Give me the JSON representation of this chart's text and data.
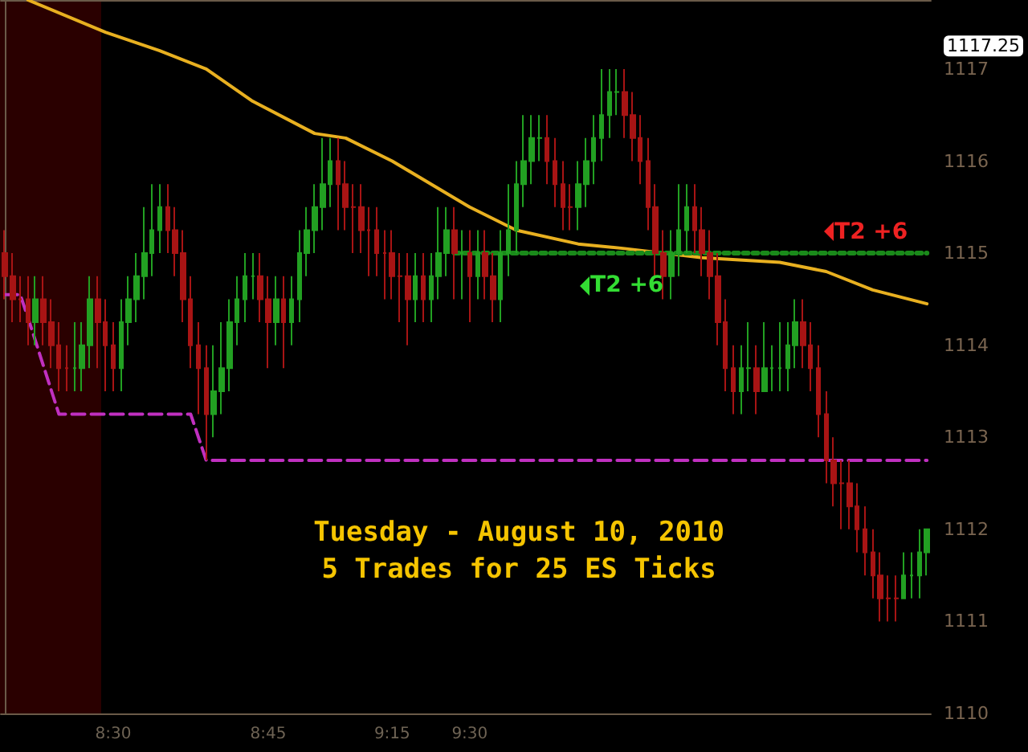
{
  "chart_data": {
    "type": "candlestick",
    "title": "Tuesday - August 10, 2010",
    "subtitle": "5 Trades for 25 ES Ticks",
    "categories": [
      null,
      null,
      null,
      null,
      null,
      null,
      null,
      null,
      null,
      null,
      null,
      null,
      null,
      null,
      "8:30",
      null,
      null,
      null,
      null,
      null,
      null,
      null,
      null,
      null,
      null,
      null,
      null,
      null,
      null,
      null,
      null,
      null,
      null,
      null,
      "8:45",
      null,
      null,
      null,
      null,
      null,
      null,
      null,
      null,
      null,
      null,
      null,
      null,
      null,
      null,
      null,
      "9:15",
      null,
      null,
      null,
      null,
      null,
      null,
      null,
      null,
      null,
      "9:30",
      null,
      null,
      null,
      null,
      null,
      null,
      null,
      null,
      null,
      null,
      null,
      null,
      null,
      null,
      null,
      null,
      null,
      null,
      null,
      null,
      null,
      null,
      null,
      null,
      null,
      null,
      null,
      null,
      null,
      null,
      null,
      null,
      null,
      null,
      null,
      null,
      null,
      null,
      null,
      null,
      null,
      null,
      null,
      null,
      null,
      null,
      null,
      null,
      null,
      null,
      null,
      null,
      null,
      null,
      null,
      null,
      null,
      null,
      null
    ],
    "ylim": [
      1110,
      1117.75
    ],
    "yticks": [
      1110,
      1111,
      1112,
      1113,
      1114,
      1115,
      1116,
      1117,
      {
        "value": 1117.25,
        "label": "1117.25"
      }
    ],
    "grid": false,
    "annotations": [
      "T2 +6",
      "T2 +6"
    ],
    "series": [
      {
        "type": "candlestick",
        "colors": [
          "#a81414",
          "#a81414",
          "#a81414",
          "#a81414",
          "#22a022",
          "#a81414",
          "#a81414",
          "#a81414",
          "#a81414",
          "#22a022",
          "#22a022",
          "#22a022",
          "#a81414",
          "#a81414",
          "#a81414",
          "#22a022",
          "#22a022",
          "#22a022",
          "#22a022",
          "#22a022",
          "#22a022",
          "#a81414",
          "#a81414",
          "#a81414",
          "#a81414",
          "#a81414",
          "#a81414",
          "#22a022",
          "#22a022",
          "#22a022",
          "#22a022",
          "#22a022",
          "#22a022",
          "#a81414",
          "#a81414",
          "#22a022",
          "#a81414",
          "#22a022",
          "#22a022",
          "#22a022",
          "#22a022",
          "#22a022",
          "#22a022",
          "#a81414",
          "#a81414",
          "#a81414",
          "#a81414",
          "#a81414",
          "#a81414",
          "#a81414",
          "#a81414",
          "#a81414",
          "#a81414",
          "#22a022",
          "#a81414",
          "#22a022",
          "#22a022",
          "#22a022",
          "#a81414",
          "#22a022",
          "#a81414",
          "#22a022",
          "#a81414",
          "#a81414",
          "#22a022",
          "#22a022",
          "#22a022",
          "#22a022",
          "#22a022",
          "#22a022",
          "#a81414",
          "#a81414",
          "#a81414",
          "#a81414",
          "#22a022",
          "#22a022",
          "#22a022",
          "#22a022",
          "#22a022",
          "#22a022",
          "#a81414",
          "#a81414",
          "#a81414",
          "#a81414",
          "#a81414",
          "#a81414",
          "#22a022",
          "#22a022",
          "#22a022",
          "#a81414",
          "#a81414",
          "#a81414",
          "#a81414",
          "#a81414",
          "#a81414",
          "#22a022",
          "#22a022",
          "#a81414",
          "#22a022",
          "#22a022",
          "#22a022",
          "#22a022",
          "#22a022",
          "#a81414",
          "#a81414",
          "#a81414",
          "#a81414",
          "#a81414",
          "#a81414",
          "#a81414",
          "#a81414",
          "#a81414",
          "#a81414",
          "#a81414",
          "#a81414",
          "#a81414",
          "#22a022",
          "#22a022",
          "#22a022",
          "#22a022"
        ],
        "ohlc": [
          [
            1115,
            1115.25,
            1114.5,
            1114.75
          ],
          [
            1114.75,
            1115,
            1114.25,
            1114.5
          ],
          [
            1114.5,
            1114.75,
            1114.25,
            1114.5
          ],
          [
            1114.5,
            1114.75,
            1114,
            1114.25
          ],
          [
            1114.25,
            1114.75,
            1114,
            1114.5
          ],
          [
            1114.5,
            1114.75,
            1114,
            1114.25
          ],
          [
            1114.25,
            1114.5,
            1113.75,
            1114
          ],
          [
            1114,
            1114.25,
            1113.5,
            1113.75
          ],
          [
            1113.75,
            1114,
            1113.5,
            1113.75
          ],
          [
            1113.75,
            1114.25,
            1113.5,
            1113.75
          ],
          [
            1113.75,
            1114.25,
            1113.5,
            1114
          ],
          [
            1114,
            1114.75,
            1113.75,
            1114.5
          ],
          [
            1114.5,
            1114.75,
            1113.75,
            1114.25
          ],
          [
            1114.25,
            1114.5,
            1113.5,
            1114
          ],
          [
            1114,
            1114.25,
            1113.5,
            1113.75
          ],
          [
            1113.75,
            1114.5,
            1113.5,
            1114.25
          ],
          [
            1114.25,
            1114.75,
            1114,
            1114.5
          ],
          [
            1114.5,
            1115,
            1114.25,
            1114.75
          ],
          [
            1114.75,
            1115.5,
            1114.5,
            1115
          ],
          [
            1115,
            1115.75,
            1114.75,
            1115.25
          ],
          [
            1115.25,
            1115.75,
            1115,
            1115.5
          ],
          [
            1115.5,
            1115.75,
            1115,
            1115.25
          ],
          [
            1115.25,
            1115.5,
            1114.75,
            1115
          ],
          [
            1115,
            1115.25,
            1114.25,
            1114.5
          ],
          [
            1114.5,
            1114.75,
            1113.75,
            1114
          ],
          [
            1114,
            1114.25,
            1113.25,
            1113.75
          ],
          [
            1113.75,
            1114,
            1112.75,
            1113.25
          ],
          [
            1113.25,
            1114,
            1113,
            1113.5
          ],
          [
            1113.5,
            1114.25,
            1113.25,
            1113.75
          ],
          [
            1113.75,
            1114.5,
            1113.5,
            1114.25
          ],
          [
            1114.25,
            1114.75,
            1114,
            1114.5
          ],
          [
            1114.5,
            1115,
            1114.25,
            1114.75
          ],
          [
            1114.75,
            1115,
            1114.5,
            1114.75
          ],
          [
            1114.75,
            1115,
            1114.25,
            1114.5
          ],
          [
            1114.5,
            1114.75,
            1113.75,
            1114.25
          ],
          [
            1114.25,
            1114.75,
            1114,
            1114.5
          ],
          [
            1114.5,
            1114.75,
            1113.75,
            1114.25
          ],
          [
            1114.25,
            1114.75,
            1114,
            1114.5
          ],
          [
            1114.5,
            1115.25,
            1114.25,
            1115
          ],
          [
            1115,
            1115.5,
            1114.75,
            1115.25
          ],
          [
            1115.25,
            1115.75,
            1115,
            1115.5
          ],
          [
            1115.5,
            1116.25,
            1115.25,
            1115.75
          ],
          [
            1115.75,
            1116.25,
            1115.5,
            1116
          ],
          [
            1116,
            1116.25,
            1115.25,
            1115.75
          ],
          [
            1115.75,
            1116,
            1115.25,
            1115.5
          ],
          [
            1115.5,
            1115.75,
            1115,
            1115.5
          ],
          [
            1115.5,
            1115.75,
            1115,
            1115.25
          ],
          [
            1115.25,
            1115.5,
            1114.75,
            1115.25
          ],
          [
            1115.25,
            1115.5,
            1114.75,
            1115
          ],
          [
            1115,
            1115.25,
            1114.5,
            1115
          ],
          [
            1115,
            1115.25,
            1114.5,
            1114.75
          ],
          [
            1114.75,
            1115,
            1114.25,
            1114.75
          ],
          [
            1114.75,
            1115,
            1114,
            1114.5
          ],
          [
            1114.5,
            1115,
            1114.25,
            1114.75
          ],
          [
            1114.75,
            1115,
            1114.25,
            1114.5
          ],
          [
            1114.5,
            1115,
            1114.25,
            1114.75
          ],
          [
            1114.75,
            1115.5,
            1114.5,
            1115
          ],
          [
            1115,
            1115.5,
            1114.75,
            1115.25
          ],
          [
            1115.25,
            1115.5,
            1114.5,
            1115
          ],
          [
            1115,
            1115.25,
            1114.5,
            1115
          ],
          [
            1115,
            1115.25,
            1114.25,
            1114.75
          ],
          [
            1114.75,
            1115.25,
            1114.5,
            1115
          ],
          [
            1115,
            1115.25,
            1114.5,
            1114.75
          ],
          [
            1114.75,
            1115,
            1114.25,
            1114.5
          ],
          [
            1114.5,
            1115.25,
            1114.25,
            1115
          ],
          [
            1115,
            1115.75,
            1114.75,
            1115.25
          ],
          [
            1115.25,
            1116,
            1115,
            1115.75
          ],
          [
            1115.75,
            1116.5,
            1115.5,
            1116
          ],
          [
            1116,
            1116.5,
            1115.75,
            1116.25
          ],
          [
            1116.25,
            1116.5,
            1116,
            1116.25
          ],
          [
            1116.25,
            1116.5,
            1115.75,
            1116
          ],
          [
            1116,
            1116.25,
            1115.5,
            1115.75
          ],
          [
            1115.75,
            1116,
            1115.25,
            1115.5
          ],
          [
            1115.5,
            1115.75,
            1115.25,
            1115.5
          ],
          [
            1115.5,
            1116,
            1115.25,
            1115.75
          ],
          [
            1115.75,
            1116.25,
            1115.5,
            1116
          ],
          [
            1116,
            1116.5,
            1115.75,
            1116.25
          ],
          [
            1116.25,
            1117,
            1116,
            1116.5
          ],
          [
            1116.5,
            1117,
            1116.25,
            1116.75
          ],
          [
            1116.75,
            1117,
            1116.5,
            1116.75
          ],
          [
            1116.75,
            1117,
            1116.25,
            1116.5
          ],
          [
            1116.5,
            1116.75,
            1116,
            1116.25
          ],
          [
            1116.25,
            1116.5,
            1115.75,
            1116
          ],
          [
            1116,
            1116.25,
            1115.25,
            1115.5
          ],
          [
            1115.5,
            1115.75,
            1114.75,
            1115
          ],
          [
            1115,
            1115.25,
            1114.5,
            1114.75
          ],
          [
            1114.75,
            1115.25,
            1114.5,
            1115
          ],
          [
            1115,
            1115.75,
            1114.75,
            1115.25
          ],
          [
            1115.25,
            1115.75,
            1115,
            1115.5
          ],
          [
            1115.5,
            1115.75,
            1115,
            1115.25
          ],
          [
            1115.25,
            1115.5,
            1114.75,
            1115
          ],
          [
            1115,
            1115.25,
            1114.5,
            1114.75
          ],
          [
            1114.75,
            1115,
            1114,
            1114.25
          ],
          [
            1114.25,
            1114.5,
            1113.5,
            1113.75
          ],
          [
            1113.75,
            1114,
            1113.25,
            1113.5
          ],
          [
            1113.5,
            1114,
            1113.25,
            1113.75
          ],
          [
            1113.75,
            1114.25,
            1113.5,
            1113.75
          ],
          [
            1113.75,
            1114,
            1113.25,
            1113.5
          ],
          [
            1113.5,
            1114.25,
            1113.5,
            1113.75
          ],
          [
            1113.75,
            1114,
            1113.5,
            1113.75
          ],
          [
            1113.75,
            1114.25,
            1113.5,
            1113.75
          ],
          [
            1113.75,
            1114.25,
            1113.5,
            1114
          ],
          [
            1114,
            1114.5,
            1113.75,
            1114.25
          ],
          [
            1114.25,
            1114.5,
            1113.75,
            1114
          ],
          [
            1114,
            1114.25,
            1113.5,
            1113.75
          ],
          [
            1113.75,
            1114,
            1113,
            1113.25
          ],
          [
            1113.25,
            1113.5,
            1112.5,
            1112.75
          ],
          [
            1112.75,
            1113,
            1112.25,
            1112.5
          ],
          [
            1112.5,
            1112.75,
            1112,
            1112.5
          ],
          [
            1112.5,
            1112.75,
            1112,
            1112.25
          ],
          [
            1112.25,
            1112.5,
            1111.75,
            1112
          ],
          [
            1112,
            1112.25,
            1111.5,
            1111.75
          ],
          [
            1111.75,
            1112,
            1111.25,
            1111.5
          ],
          [
            1111.5,
            1111.75,
            1111,
            1111.25
          ],
          [
            1111.25,
            1111.5,
            1111,
            1111.25
          ],
          [
            1111.25,
            1111.5,
            1111,
            1111.25
          ],
          [
            1111.25,
            1111.75,
            1111.25,
            1111.5
          ],
          [
            1111.5,
            1111.75,
            1111.25,
            1111.5
          ],
          [
            1111.5,
            1112,
            1111.25,
            1111.75
          ],
          [
            1111.75,
            1112,
            1111.5,
            1112
          ]
        ]
      },
      {
        "type": "line",
        "color": "#e8b020",
        "line_style": "solid",
        "marker": "none",
        "values": [
          null,
          null,
          null,
          1117.75,
          null,
          null,
          null,
          null,
          null,
          null,
          null,
          null,
          null,
          1117.4,
          null,
          null,
          null,
          null,
          null,
          null,
          1117.2,
          null,
          null,
          null,
          null,
          null,
          1117.0,
          null,
          null,
          null,
          null,
          null,
          1116.65,
          null,
          null,
          null,
          null,
          null,
          null,
          null,
          1116.3,
          null,
          null,
          null,
          1116.25,
          null,
          null,
          null,
          null,
          null,
          1116.0,
          null,
          null,
          null,
          null,
          null,
          null,
          null,
          null,
          null,
          1115.5,
          null,
          null,
          null,
          null,
          null,
          1115.25,
          null,
          null,
          null,
          null,
          null,
          null,
          null,
          1115.1,
          null,
          null,
          null,
          null,
          null,
          1115.05,
          null,
          null,
          null,
          null,
          null,
          null,
          null,
          null,
          null,
          1114.95,
          null,
          null,
          null,
          null,
          null,
          null,
          null,
          null,
          null,
          1114.9,
          null,
          null,
          null,
          null,
          null,
          1114.8,
          null,
          null,
          null,
          null,
          null,
          1114.6,
          null,
          null,
          null,
          null,
          null,
          null,
          1114.45
        ]
      },
      {
        "type": "line",
        "color": "#c030c0",
        "line_style": "dashed",
        "marker": "none",
        "values": [
          1114.55,
          null,
          1114.55,
          1114.3,
          null,
          null,
          null,
          1113.25,
          null,
          null,
          null,
          null,
          null,
          null,
          null,
          null,
          null,
          null,
          null,
          null,
          null,
          null,
          null,
          null,
          1113.25,
          null,
          1112.75,
          null,
          null,
          null,
          null,
          null,
          null,
          null,
          null,
          null,
          null,
          null,
          null,
          null,
          null,
          null,
          null,
          null,
          null,
          null,
          null,
          null,
          null,
          null,
          null,
          null,
          null,
          null,
          null,
          null,
          null,
          null,
          null,
          null,
          null,
          null,
          null,
          null,
          null,
          null,
          null,
          null,
          null,
          null,
          null,
          null,
          null,
          null,
          null,
          null,
          null,
          null,
          null,
          null,
          null,
          null,
          null,
          null,
          null,
          null,
          null,
          null,
          null,
          null,
          null,
          null,
          null,
          null,
          null,
          null,
          null,
          null,
          null,
          null,
          null,
          null,
          null,
          null,
          null,
          null,
          null,
          null,
          null,
          null,
          null,
          null,
          null,
          null,
          null,
          null,
          null,
          null,
          null,
          1112.75
        ]
      },
      {
        "type": "line",
        "color": "#1a8a1a",
        "line_style": "dotted",
        "marker": "none",
        "values": [
          null,
          null,
          null,
          null,
          null,
          null,
          null,
          null,
          null,
          null,
          null,
          null,
          null,
          null,
          null,
          null,
          null,
          null,
          null,
          null,
          null,
          null,
          null,
          null,
          null,
          null,
          null,
          null,
          null,
          null,
          null,
          null,
          null,
          null,
          null,
          null,
          null,
          null,
          null,
          null,
          null,
          null,
          null,
          null,
          null,
          null,
          null,
          null,
          null,
          null,
          null,
          null,
          null,
          null,
          null,
          null,
          null,
          null,
          1115,
          null,
          null,
          null,
          null,
          null,
          null,
          null,
          null,
          null,
          null,
          null,
          null,
          null,
          null,
          null,
          null,
          null,
          null,
          null,
          null,
          null,
          null,
          null,
          null,
          null,
          null,
          null,
          null,
          null,
          null,
          null,
          null,
          null,
          null,
          null,
          null,
          null,
          null,
          null,
          null,
          null,
          null,
          null,
          null,
          null,
          null,
          null,
          null,
          null,
          null,
          null,
          null,
          null,
          null,
          null,
          null,
          null,
          null,
          null,
          null,
          1115
        ]
      }
    ]
  }
}
